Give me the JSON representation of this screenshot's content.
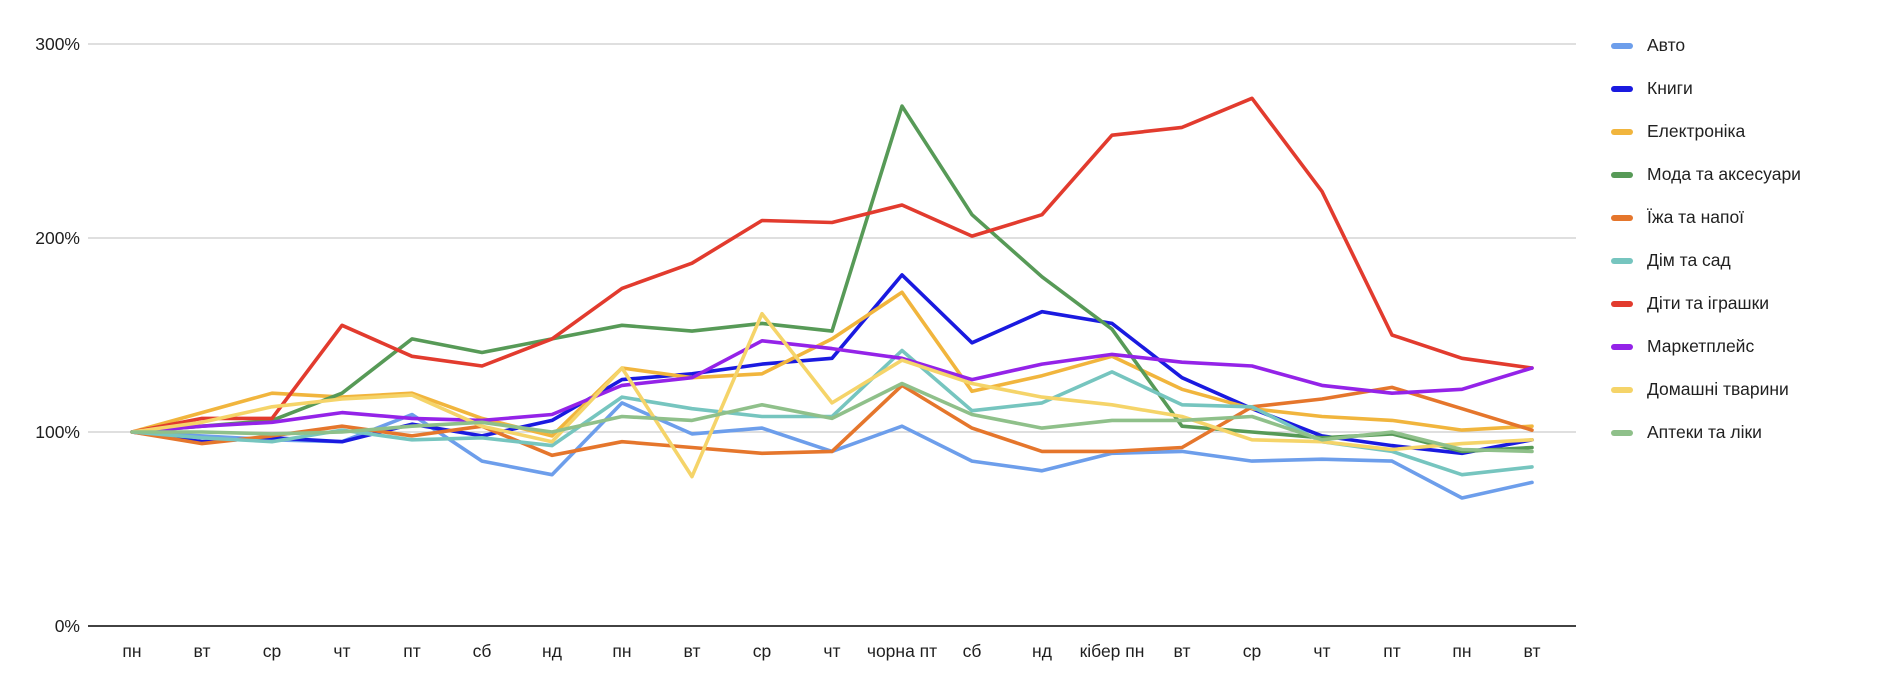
{
  "page": {
    "background": "#ffffff"
  },
  "chart_data": {
    "type": "line",
    "title": "",
    "xlabel": "",
    "ylabel": "",
    "unit": "%",
    "y_axis_range": [
      0,
      300
    ],
    "y_ticks": [
      {
        "label": "0%",
        "value": 0
      },
      {
        "label": "100%",
        "value": 100
      },
      {
        "label": "200%",
        "value": 200
      },
      {
        "label": "300%",
        "value": 300
      }
    ],
    "grid": "horizontal",
    "legend_position": "right",
    "x_labels": [
      "пн",
      "вт",
      "ср",
      "чт",
      "пт",
      "сб",
      "нд",
      "пн",
      "вт",
      "ср",
      "чт",
      "чорна пт",
      "сб",
      "нд",
      "кібер пн",
      "вт",
      "ср",
      "чт",
      "пт",
      "пн",
      "вт"
    ],
    "series": [
      {
        "name": "Авто",
        "color": "#6D9EEB",
        "values": [
          100,
          98,
          96,
          95,
          109,
          85,
          78,
          115,
          99,
          102,
          90,
          103,
          85,
          80,
          89,
          90,
          85,
          86,
          85,
          66,
          74
        ]
      },
      {
        "name": "Книги",
        "color": "#1A1AE0",
        "values": [
          100,
          95,
          97,
          95,
          104,
          98,
          106,
          127,
          130,
          135,
          138,
          181,
          146,
          162,
          156,
          128,
          112,
          98,
          93,
          89,
          96
        ]
      },
      {
        "name": "Електроніка",
        "color": "#F1B53D",
        "values": [
          100,
          110,
          120,
          118,
          120,
          107,
          98,
          133,
          128,
          130,
          148,
          172,
          121,
          129,
          139,
          122,
          112,
          108,
          106,
          101,
          103
        ]
      },
      {
        "name": "Мода та аксесуари",
        "color": "#579A57",
        "values": [
          100,
          103,
          106,
          120,
          148,
          141,
          148,
          155,
          152,
          156,
          152,
          268,
          212,
          180,
          153,
          103,
          100,
          97,
          99,
          90,
          92
        ]
      },
      {
        "name": "Їжа та напої",
        "color": "#E5762C",
        "values": [
          100,
          94,
          98,
          103,
          98,
          103,
          88,
          95,
          92,
          89,
          90,
          124,
          102,
          90,
          90,
          92,
          113,
          117,
          123,
          112,
          101
        ]
      },
      {
        "name": "Дім та сад",
        "color": "#76C5BF",
        "values": [
          100,
          97,
          95,
          101,
          96,
          97,
          93,
          118,
          112,
          108,
          108,
          142,
          111,
          115,
          131,
          114,
          113,
          95,
          90,
          78,
          82
        ]
      },
      {
        "name": "Діти та іграшки",
        "color": "#E23B2E",
        "values": [
          100,
          107,
          107,
          155,
          139,
          134,
          148,
          174,
          187,
          209,
          208,
          217,
          201,
          212,
          253,
          257,
          272,
          224,
          150,
          138,
          133
        ]
      },
      {
        "name": "Маркетплейс",
        "color": "#9423E8",
        "values": [
          100,
          103,
          105,
          110,
          107,
          106,
          109,
          124,
          128,
          147,
          143,
          138,
          127,
          135,
          140,
          136,
          134,
          124,
          120,
          122,
          133
        ]
      },
      {
        "name": "Домашні тварини",
        "color": "#F5D469",
        "values": [
          100,
          105,
          113,
          117,
          119,
          103,
          95,
          133,
          77,
          161,
          115,
          137,
          125,
          118,
          114,
          108,
          96,
          95,
          91,
          94,
          96
        ]
      },
      {
        "name": "Аптеки та ліки",
        "color": "#8FC08A",
        "values": [
          100,
          100,
          99,
          100,
          103,
          105,
          100,
          108,
          106,
          114,
          107,
          125,
          109,
          102,
          106,
          106,
          108,
          96,
          100,
          91,
          90
        ]
      }
    ]
  }
}
